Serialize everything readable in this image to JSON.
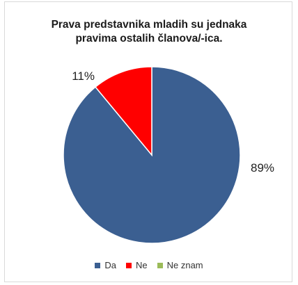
{
  "chart_data": {
    "type": "pie",
    "title_lines": [
      "Prava predstavnika mladih su jednaka",
      "pravima ostalih članova/-ica."
    ],
    "categories": [
      "Da",
      "Ne",
      "Ne znam"
    ],
    "values": [
      89,
      11,
      0
    ],
    "value_labels": [
      "89%",
      "11%",
      ""
    ],
    "colors": [
      "#3b5f91",
      "#ff0000",
      "#9bbb59"
    ],
    "legend_position": "bottom"
  }
}
